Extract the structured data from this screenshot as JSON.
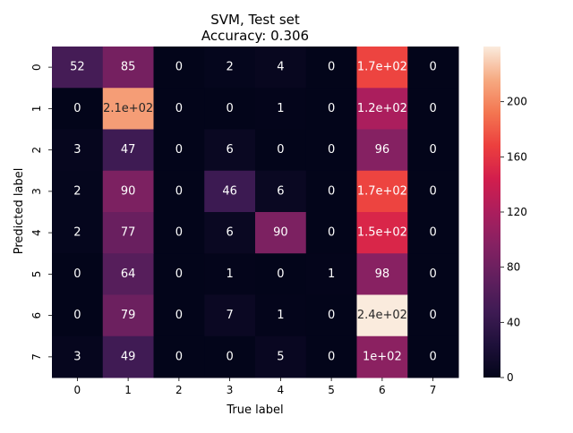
{
  "chart_data": {
    "type": "heatmap",
    "title": "SVM, Test set",
    "subtitle": "Accuracy: 0.306",
    "xlabel": "True label",
    "ylabel": "Predicted label",
    "x_categories": [
      "0",
      "1",
      "2",
      "3",
      "4",
      "5",
      "6",
      "7"
    ],
    "y_categories": [
      "0",
      "1",
      "2",
      "3",
      "4",
      "5",
      "6",
      "7"
    ],
    "values": [
      [
        52,
        85,
        0,
        2,
        4,
        0,
        170,
        0
      ],
      [
        0,
        210,
        0,
        0,
        1,
        0,
        120,
        0
      ],
      [
        3,
        47,
        0,
        6,
        0,
        0,
        96,
        0
      ],
      [
        2,
        90,
        0,
        46,
        6,
        0,
        170,
        0
      ],
      [
        2,
        77,
        0,
        6,
        90,
        0,
        150,
        0
      ],
      [
        0,
        64,
        0,
        1,
        0,
        1,
        98,
        0
      ],
      [
        0,
        79,
        0,
        7,
        1,
        0,
        240,
        0
      ],
      [
        3,
        49,
        0,
        0,
        5,
        0,
        100,
        0
      ]
    ],
    "annotations": [
      [
        "52",
        "85",
        "0",
        "2",
        "4",
        "0",
        "1.7e+02",
        "0"
      ],
      [
        "0",
        "2.1e+02",
        "0",
        "0",
        "1",
        "0",
        "1.2e+02",
        "0"
      ],
      [
        "3",
        "47",
        "0",
        "6",
        "0",
        "0",
        "96",
        "0"
      ],
      [
        "2",
        "90",
        "0",
        "46",
        "6",
        "0",
        "1.7e+02",
        "0"
      ],
      [
        "2",
        "77",
        "0",
        "6",
        "90",
        "0",
        "1.5e+02",
        "0"
      ],
      [
        "0",
        "64",
        "0",
        "1",
        "0",
        "1",
        "98",
        "0"
      ],
      [
        "0",
        "79",
        "0",
        "7",
        "1",
        "0",
        "2.4e+02",
        "0"
      ],
      [
        "3",
        "49",
        "0",
        "0",
        "5",
        "0",
        "1e+02",
        "0"
      ]
    ],
    "colorbar": {
      "range": [
        0,
        240
      ],
      "ticks": [
        0,
        40,
        80,
        120,
        160,
        200
      ],
      "tick_labels": [
        "0",
        "40",
        "80",
        "120",
        "160",
        "200"
      ],
      "colormap": "rocket"
    },
    "grid": false,
    "legend": "colorbar-right"
  }
}
